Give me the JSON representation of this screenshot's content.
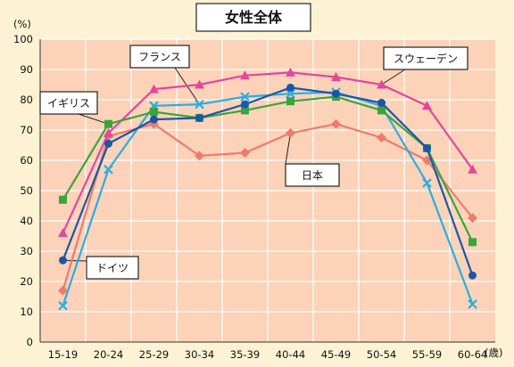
{
  "chart_data": {
    "type": "line",
    "title": "女性全体",
    "y_unit": "(%)",
    "x_unit": "(歳)",
    "ylim": [
      0,
      100
    ],
    "y_ticks": [
      0,
      10,
      20,
      30,
      40,
      50,
      60,
      70,
      80,
      90,
      100
    ],
    "grid": true,
    "categories": [
      "15-19",
      "20-24",
      "25-29",
      "30-34",
      "35-39",
      "40-44",
      "45-49",
      "50-54",
      "55-59",
      "60-64"
    ],
    "series": [
      {
        "name": "日本",
        "color": "#f07a6e",
        "marker": "diamond",
        "values": [
          17,
          68,
          72,
          61.5,
          62.5,
          69,
          72,
          67.5,
          60,
          41
        ]
      },
      {
        "name": "スウェーデン",
        "color": "#e2479e",
        "marker": "triangle",
        "values": [
          36,
          69,
          83.5,
          85,
          88,
          89,
          87.5,
          85,
          78,
          57
        ]
      },
      {
        "name": "フランス",
        "color": "#29aee0",
        "marker": "x",
        "values": [
          12,
          57,
          78,
          78.5,
          81,
          82,
          82.5,
          78,
          52.5,
          12.5
        ]
      },
      {
        "name": "イギリス",
        "color": "#3aa53a",
        "marker": "square",
        "values": [
          47,
          72,
          76,
          74,
          76.5,
          79.5,
          81,
          76.5,
          64,
          33
        ]
      },
      {
        "name": "ドイツ",
        "color": "#1c56a8",
        "marker": "circle",
        "values": [
          27,
          65.5,
          73.5,
          74,
          78.5,
          84,
          82,
          79,
          64,
          22
        ]
      }
    ]
  }
}
